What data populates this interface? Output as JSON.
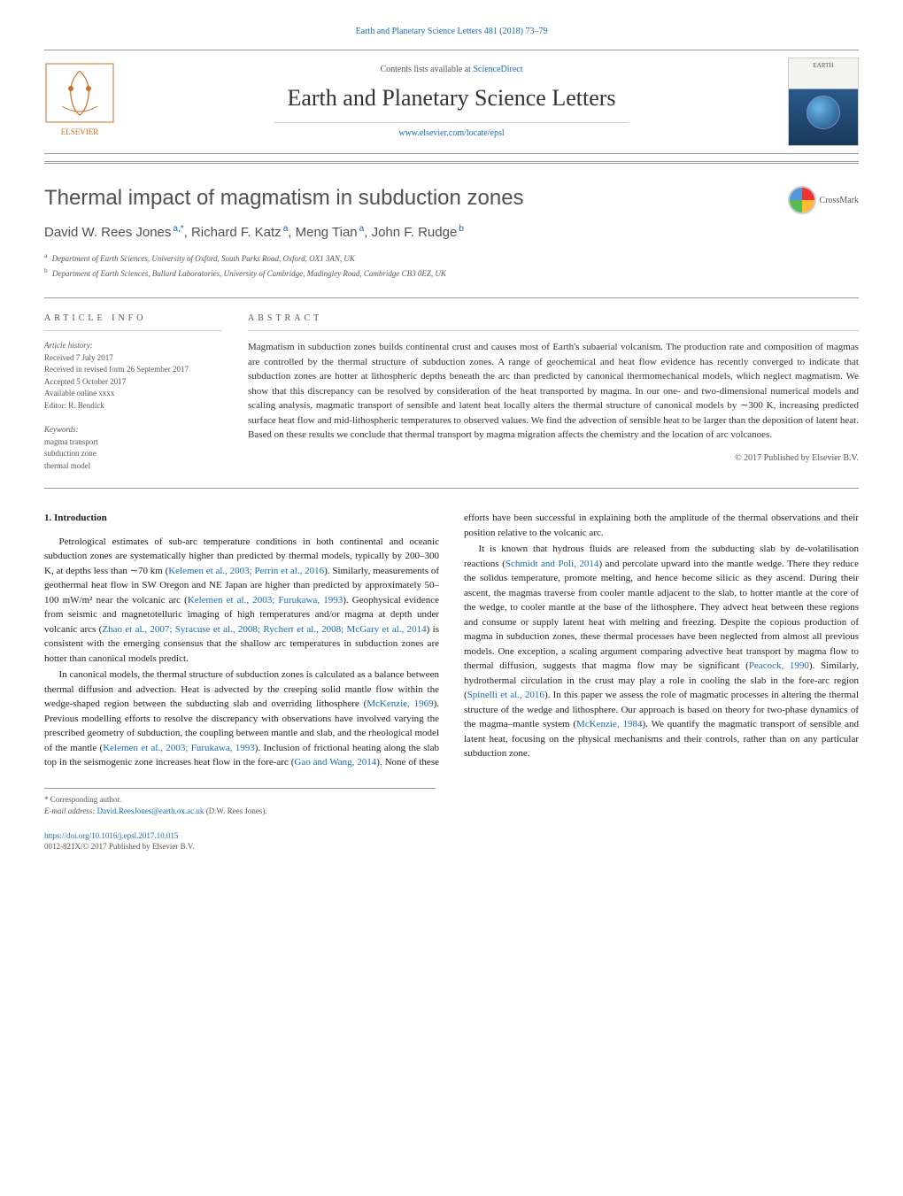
{
  "header": {
    "citation_line": "Earth and Planetary Science Letters 481 (2018) 73–79",
    "contents_prefix": "Contents lists available at ",
    "contents_link": "ScienceDirect",
    "journal_name": "Earth and Planetary Science Letters",
    "journal_url": "www.elsevier.com/locate/epsl",
    "cover_text": "EARTH"
  },
  "article": {
    "title": "Thermal impact of magmatism in subduction zones",
    "crossmark_label": "CrossMark",
    "authors_html": "David W. Rees Jones",
    "author_list": [
      {
        "name": "David W. Rees Jones",
        "marks": "a,*"
      },
      {
        "name": "Richard F. Katz",
        "marks": "a"
      },
      {
        "name": "Meng Tian",
        "marks": "a"
      },
      {
        "name": "John F. Rudge",
        "marks": "b"
      }
    ],
    "affiliations": [
      {
        "mark": "a",
        "text": "Department of Earth Sciences, University of Oxford, South Parks Road, Oxford, OX1 3AN, UK"
      },
      {
        "mark": "b",
        "text": "Department of Earth Sciences, Bullard Laboratories, University of Cambridge, Madingley Road, Cambridge CB3 0EZ, UK"
      }
    ]
  },
  "info": {
    "heading": "article info",
    "history_head": "Article history:",
    "history": [
      "Received 7 July 2017",
      "Received in revised form 26 September 2017",
      "Accepted 5 October 2017",
      "Available online xxxx",
      "Editor: R. Bendick"
    ],
    "keywords_head": "Keywords:",
    "keywords": [
      "magma transport",
      "subduction zone",
      "thermal model"
    ]
  },
  "abstract": {
    "heading": "abstract",
    "text": "Magmatism in subduction zones builds continental crust and causes most of Earth's subaerial volcanism. The production rate and composition of magmas are controlled by the thermal structure of subduction zones. A range of geochemical and heat flow evidence has recently converged to indicate that subduction zones are hotter at lithospheric depths beneath the arc than predicted by canonical thermomechanical models, which neglect magmatism. We show that this discrepancy can be resolved by consideration of the heat transported by magma. In our one- and two-dimensional numerical models and scaling analysis, magmatic transport of sensible and latent heat locally alters the thermal structure of canonical models by ∼300 K, increasing predicted surface heat flow and mid-lithospheric temperatures to observed values. We find the advection of sensible heat to be larger than the deposition of latent heat. Based on these results we conclude that thermal transport by magma migration affects the chemistry and the location of arc volcanoes.",
    "copyright": "© 2017 Published by Elsevier B.V."
  },
  "body": {
    "section_number": "1.",
    "section_title": "Introduction",
    "p1_a": "Petrological estimates of sub-arc temperature conditions in both continental and oceanic subduction zones are systematically higher than predicted by thermal models, typically by 200–300 K, at depths less than ∼70 km (",
    "c1": "Kelemen et al., 2003; Perrin et al., 2016",
    "p1_b": "). Similarly, measurements of geothermal heat flow in SW Oregon and NE Japan are higher than predicted by approximately 50–100 mW/m² near the volcanic arc (",
    "c2": "Kelemen et al., 2003; Furukawa, 1993",
    "p1_c": "). Geophysical evidence from seismic and magnetotelluric imaging of high temperatures and/or magma at depth under volcanic arcs (",
    "c3": "Zhao et al., 2007; Syracuse et al., 2008; Rychert et al., 2008; McGary et al., 2014",
    "p1_d": ") is consistent with the emerging consensus that the shallow arc temperatures in subduction zones are hotter than canonical models predict.",
    "p2_a": "In canonical models, the thermal structure of subduction zones is calculated as a balance between thermal diffusion and advection. Heat is advected by the creeping solid mantle flow within the wedge-shaped region between the subducting slab and overriding lithosphere (",
    "c4": "McKenzie, 1969",
    "p2_b": "). Previous modelling efforts to resolve the discrepancy with observations have involved varying the prescribed geometry of subduction, the coupling between mantle and slab, and the rheological model of the mantle (",
    "c5": "Kelemen et al., 2003; Furukawa, 1993",
    "p2_c": "). Inclusion of frictional heating along the ",
    "p2_d": "slab top in the seismogenic zone increases heat flow in the fore-arc (",
    "c6": "Gao and Wang, 2014",
    "p2_e": "). None of these efforts have been successful in explaining both the amplitude of the thermal observations and their position relative to the volcanic arc.",
    "p3_a": "It is known that hydrous fluids are released from the subducting slab by de-volatilisation reactions (",
    "c7": "Schmidt and Poli, 2014",
    "p3_b": ") and percolate upward into the mantle wedge. There they reduce the solidus temperature, promote melting, and hence become silicic as they ascend. During their ascent, the magmas traverse from cooler mantle adjacent to the slab, to hotter mantle at the core of the wedge, to cooler mantle at the base of the lithosphere. They advect heat between these regions and consume or supply latent heat with melting and freezing. Despite the copious production of magma in subduction zones, these thermal processes have been neglected from almost all previous models. One exception, a scaling argument comparing advective heat transport by magma flow to thermal diffusion, suggests that magma flow may be significant (",
    "c8": "Peacock, 1990",
    "p3_c": "). Similarly, hydrothermal circulation in the crust may play a role in cooling the slab in the fore-arc region (",
    "c9": "Spinelli et al., 2016",
    "p3_d": "). In this paper we assess the role of magmatic processes in altering the thermal structure of the wedge and lithosphere. Our approach is based on theory for two-phase dynamics of the magma–mantle system (",
    "c10": "McKenzie, 1984",
    "p3_e": "). We quantify the magmatic transport of sensible and latent heat, focusing on the physical mechanisms and their controls, rather than on any particular subduction zone."
  },
  "footnotes": {
    "corr": "Corresponding author.",
    "email_label": "E-mail address:",
    "email": "David.ReesJones@earth.ox.ac.uk",
    "email_suffix": "(D.W. Rees Jones)."
  },
  "footer": {
    "doi": "https://doi.org/10.1016/j.epsl.2017.10.015",
    "issn_line": "0012-821X/© 2017 Published by Elsevier B.V."
  },
  "colors": {
    "link": "#1a6bb5",
    "text": "#333333",
    "muted": "#555555",
    "rule": "#999999"
  }
}
